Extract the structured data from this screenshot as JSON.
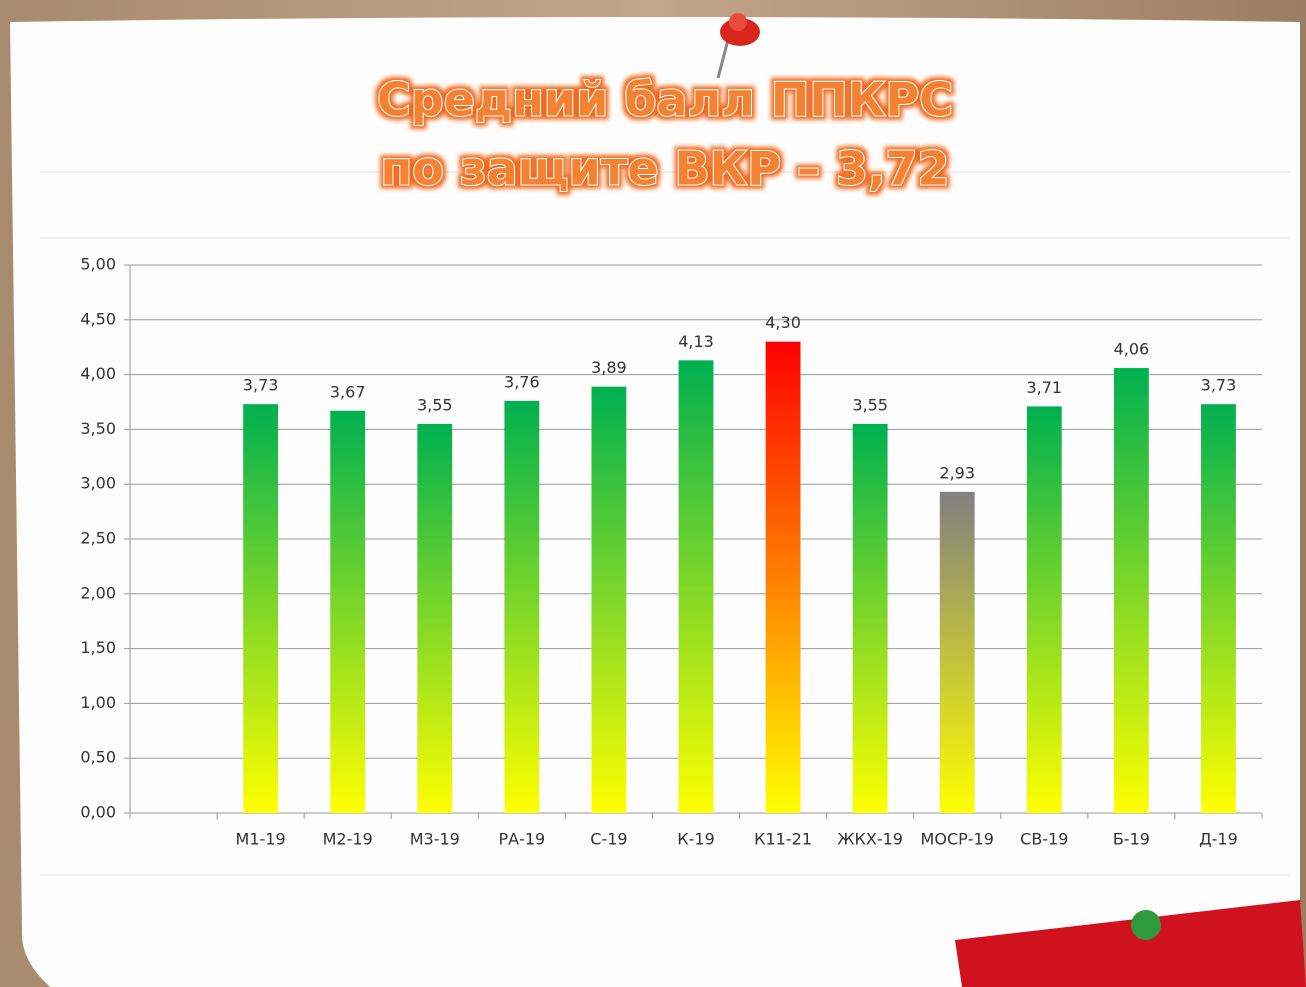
{
  "chart_data": {
    "type": "bar",
    "title": "Средний балл ППКРС",
    "subtitle": "по защите ВКР – 3,72",
    "categories": [
      null,
      "М1-19",
      "М2-19",
      "М3-19",
      "РА-19",
      "С-19",
      "К-19",
      "К11-21",
      "ЖКХ-19",
      "МОСР-19",
      "СВ-19",
      "Б-19",
      "Д-19"
    ],
    "values": [
      null,
      3.73,
      3.67,
      3.55,
      3.76,
      3.89,
      4.13,
      4.3,
      3.55,
      2.93,
      3.71,
      4.06,
      3.73
    ],
    "value_labels": [
      null,
      "3,73",
      "3,67",
      "3,55",
      "3,76",
      "3,89",
      "4,13",
      "4,30",
      "3,55",
      "2,93",
      "3,71",
      "4,06",
      "3,73"
    ],
    "colors": [
      null,
      "#00b050",
      "#00b050",
      "#00b050",
      "#00b050",
      "#00b050",
      "#00b050",
      "#ff0000",
      "#00b050",
      "#808080",
      "#00b050",
      "#00b050",
      "#00b050"
    ],
    "gradient_bottom": "#ffff00",
    "ylim": [
      0,
      5
    ],
    "yticks": [
      {
        "value": 0,
        "label": "0,00"
      },
      {
        "value": 0.5,
        "label": "0,50"
      },
      {
        "value": 1,
        "label": "1,00"
      },
      {
        "value": 1.5,
        "label": "1,50"
      },
      {
        "value": 2,
        "label": "2,00"
      },
      {
        "value": 2.5,
        "label": "2,50"
      },
      {
        "value": 3,
        "label": "3,00"
      },
      {
        "value": 3.5,
        "label": "3,50"
      },
      {
        "value": 4,
        "label": "4,00"
      },
      {
        "value": 4.5,
        "label": "4,50"
      },
      {
        "value": 5,
        "label": "5,00"
      }
    ],
    "grid": true
  }
}
